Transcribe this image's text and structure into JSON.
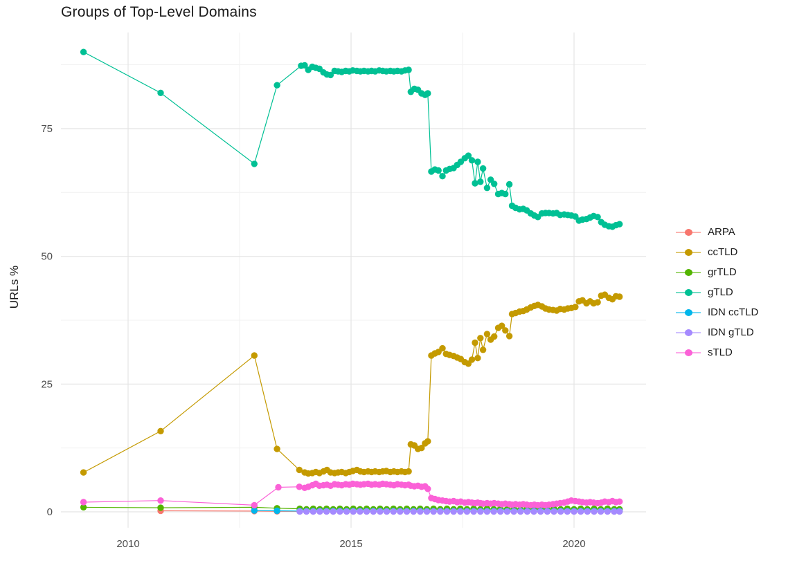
{
  "title": "Groups of Top-Level Domains",
  "y_axis": {
    "label": "URLs %",
    "ticks": [
      "0",
      "25",
      "50",
      "75"
    ]
  },
  "x_axis": {
    "ticks": [
      "2010",
      "2015",
      "2020"
    ]
  },
  "legend": {
    "position": "right",
    "items": [
      {
        "label": "ARPA",
        "color": "#F8766D"
      },
      {
        "label": "ccTLD",
        "color": "#C49A00"
      },
      {
        "label": "grTLD",
        "color": "#53B400"
      },
      {
        "label": "gTLD",
        "color": "#00C094"
      },
      {
        "label": "IDN ccTLD",
        "color": "#00B6EB"
      },
      {
        "label": "IDN gTLD",
        "color": "#A58AFF"
      },
      {
        "label": "sTLD",
        "color": "#FB61D7"
      }
    ]
  },
  "chart_data": {
    "type": "line",
    "title": "Groups of Top-Level Domains",
    "xlabel": "",
    "ylabel": "URLs %",
    "x_range": [
      2008.5,
      2021.6
    ],
    "y_range": [
      -3,
      94
    ],
    "x_major_ticks": [
      2010,
      2015,
      2020
    ],
    "x_minor_gridlines": [
      2012.5,
      2017.5
    ],
    "y_major_ticks": [
      0,
      25,
      50,
      75
    ],
    "y_minor_gridlines": [
      12.5,
      37.5,
      62.5,
      87.5
    ],
    "grid": true,
    "legend_position": "right",
    "series": [
      {
        "name": "ARPA",
        "color": "#F8766D",
        "x": [
          2010.73,
          2012.83,
          2013.34,
          2013.85,
          2014.0,
          2014.15,
          2014.3,
          2014.45,
          2014.6,
          2014.75,
          2014.9,
          2015.05,
          2015.2,
          2015.35,
          2015.5,
          2015.65,
          2015.8,
          2015.95,
          2016.1,
          2016.25,
          2016.4,
          2016.55,
          2016.7,
          2016.85,
          2017.0,
          2017.15,
          2017.3,
          2017.45,
          2017.6,
          2017.75,
          2017.9,
          2018.05,
          2018.2,
          2018.35,
          2018.5,
          2018.65,
          2018.8,
          2018.95,
          2019.1,
          2019.25,
          2019.4,
          2019.55,
          2019.7,
          2019.85,
          2020.0,
          2020.15,
          2020.3,
          2020.45,
          2020.6,
          2020.75,
          2020.9,
          2021.02
        ],
        "y": [
          0.2,
          0.15,
          0.1,
          0.1,
          0.1,
          0.1,
          0.1,
          0.1,
          0.1,
          0.1,
          0.1,
          0.1,
          0.1,
          0.1,
          0.1,
          0.1,
          0.1,
          0.1,
          0.1,
          0.1,
          0.1,
          0.1,
          0.1,
          0.1,
          0.1,
          0.1,
          0.1,
          0.1,
          0.1,
          0.1,
          0.1,
          0.1,
          0.1,
          0.1,
          0.1,
          0.1,
          0.1,
          0.1,
          0.1,
          0.1,
          0.1,
          0.1,
          0.1,
          0.1,
          0.1,
          0.1,
          0.1,
          0.1,
          0.1,
          0.1,
          0.1,
          0.1
        ]
      },
      {
        "name": "ccTLD",
        "color": "#C49A00",
        "x": [
          2009.0,
          2010.73,
          2012.83,
          2013.34,
          2013.84,
          2013.96,
          2014.04,
          2014.13,
          2014.21,
          2014.29,
          2014.38,
          2014.46,
          2014.54,
          2014.63,
          2014.71,
          2014.79,
          2014.88,
          2014.96,
          2015.04,
          2015.13,
          2015.21,
          2015.29,
          2015.38,
          2015.46,
          2015.54,
          2015.63,
          2015.71,
          2015.79,
          2015.88,
          2015.96,
          2016.04,
          2016.13,
          2016.21,
          2016.29,
          2016.34,
          2016.42,
          2016.5,
          2016.58,
          2016.66,
          2016.72,
          2016.8,
          2016.88,
          2016.96,
          2017.05,
          2017.13,
          2017.21,
          2017.3,
          2017.38,
          2017.46,
          2017.55,
          2017.63,
          2017.71,
          2017.78,
          2017.84,
          2017.9,
          2017.96,
          2018.05,
          2018.13,
          2018.21,
          2018.3,
          2018.38,
          2018.46,
          2018.55,
          2018.61,
          2018.69,
          2018.78,
          2018.86,
          2018.94,
          2019.03,
          2019.11,
          2019.19,
          2019.28,
          2019.36,
          2019.44,
          2019.53,
          2019.61,
          2019.69,
          2019.78,
          2019.86,
          2019.94,
          2020.03,
          2020.11,
          2020.19,
          2020.28,
          2020.36,
          2020.44,
          2020.53,
          2020.61,
          2020.69,
          2020.78,
          2020.86,
          2020.94,
          2021.02
        ],
        "y": [
          7.7,
          15.8,
          30.6,
          12.3,
          8.2,
          7.7,
          7.5,
          7.6,
          7.8,
          7.6,
          7.9,
          8.2,
          7.7,
          7.6,
          7.7,
          7.8,
          7.6,
          7.8,
          8.0,
          8.2,
          7.9,
          7.8,
          7.9,
          7.8,
          7.9,
          7.8,
          7.9,
          8.0,
          7.8,
          7.9,
          7.8,
          7.9,
          7.8,
          7.9,
          13.2,
          13.0,
          12.3,
          12.5,
          13.4,
          13.8,
          30.6,
          31.0,
          31.3,
          32.0,
          30.9,
          30.7,
          30.5,
          30.2,
          29.9,
          29.3,
          29.0,
          29.8,
          33.1,
          30.1,
          34.0,
          31.7,
          34.8,
          33.7,
          34.3,
          36.0,
          36.4,
          35.5,
          34.4,
          38.7,
          38.9,
          39.2,
          39.3,
          39.6,
          40.0,
          40.3,
          40.5,
          40.2,
          39.8,
          39.6,
          39.5,
          39.4,
          39.7,
          39.6,
          39.8,
          39.9,
          40.1,
          41.2,
          41.4,
          40.8,
          41.2,
          40.8,
          41.0,
          42.3,
          42.5,
          41.9,
          41.6,
          42.2,
          42.1
        ]
      },
      {
        "name": "grTLD",
        "color": "#53B400",
        "x": [
          2009.0,
          2010.73,
          2012.83,
          2013.34,
          2013.85,
          2014.0,
          2014.15,
          2014.3,
          2014.45,
          2014.6,
          2014.75,
          2014.9,
          2015.05,
          2015.2,
          2015.35,
          2015.5,
          2015.65,
          2015.8,
          2015.95,
          2016.1,
          2016.25,
          2016.4,
          2016.55,
          2016.7,
          2016.85,
          2017.0,
          2017.15,
          2017.3,
          2017.45,
          2017.6,
          2017.75,
          2017.9,
          2018.05,
          2018.2,
          2018.35,
          2018.5,
          2018.65,
          2018.8,
          2018.95,
          2019.1,
          2019.25,
          2019.4,
          2019.55,
          2019.7,
          2019.85,
          2020.0,
          2020.15,
          2020.3,
          2020.45,
          2020.6,
          2020.75,
          2020.9,
          2021.02
        ],
        "y": [
          0.9,
          0.8,
          0.9,
          0.7,
          0.6,
          0.5,
          0.6,
          0.5,
          0.6,
          0.5,
          0.6,
          0.5,
          0.6,
          0.5,
          0.6,
          0.5,
          0.6,
          0.5,
          0.6,
          0.5,
          0.6,
          0.5,
          0.6,
          0.5,
          0.6,
          0.5,
          0.6,
          0.5,
          0.6,
          0.5,
          0.6,
          0.5,
          0.6,
          0.5,
          0.6,
          0.5,
          0.6,
          0.5,
          0.6,
          0.5,
          0.6,
          0.5,
          0.6,
          0.5,
          0.6,
          0.5,
          0.6,
          0.5,
          0.6,
          0.5,
          0.6,
          0.5,
          0.5
        ]
      },
      {
        "name": "gTLD",
        "color": "#00C094",
        "x": [
          2009.0,
          2010.73,
          2012.83,
          2013.34,
          2013.88,
          2013.96,
          2014.04,
          2014.13,
          2014.21,
          2014.29,
          2014.38,
          2014.46,
          2014.54,
          2014.63,
          2014.71,
          2014.79,
          2014.88,
          2014.96,
          2015.04,
          2015.13,
          2015.21,
          2015.29,
          2015.38,
          2015.46,
          2015.54,
          2015.63,
          2015.71,
          2015.79,
          2015.88,
          2015.96,
          2016.04,
          2016.13,
          2016.21,
          2016.29,
          2016.34,
          2016.42,
          2016.5,
          2016.58,
          2016.66,
          2016.72,
          2016.8,
          2016.88,
          2016.96,
          2017.05,
          2017.13,
          2017.21,
          2017.3,
          2017.38,
          2017.46,
          2017.55,
          2017.63,
          2017.71,
          2017.78,
          2017.84,
          2017.9,
          2017.96,
          2018.05,
          2018.13,
          2018.21,
          2018.3,
          2018.38,
          2018.46,
          2018.55,
          2018.61,
          2018.69,
          2018.78,
          2018.86,
          2018.94,
          2019.03,
          2019.11,
          2019.19,
          2019.28,
          2019.36,
          2019.44,
          2019.53,
          2019.61,
          2019.69,
          2019.78,
          2019.86,
          2019.94,
          2020.03,
          2020.11,
          2020.19,
          2020.28,
          2020.36,
          2020.44,
          2020.53,
          2020.61,
          2020.69,
          2020.78,
          2020.86,
          2020.94,
          2021.02
        ],
        "y": [
          90.0,
          82.0,
          68.1,
          83.5,
          87.3,
          87.4,
          86.5,
          87.1,
          86.9,
          86.7,
          86.0,
          85.6,
          85.5,
          86.3,
          86.2,
          86.1,
          86.3,
          86.2,
          86.4,
          86.3,
          86.2,
          86.3,
          86.2,
          86.3,
          86.2,
          86.4,
          86.3,
          86.2,
          86.3,
          86.2,
          86.3,
          86.2,
          86.4,
          86.5,
          82.2,
          82.8,
          82.6,
          81.9,
          81.6,
          81.9,
          66.6,
          67.0,
          66.8,
          65.7,
          66.8,
          67.1,
          67.3,
          67.9,
          68.5,
          69.2,
          69.7,
          68.8,
          64.3,
          68.5,
          64.6,
          67.2,
          63.4,
          65.0,
          64.2,
          62.2,
          62.4,
          62.2,
          64.1,
          59.9,
          59.5,
          59.2,
          59.3,
          59.0,
          58.4,
          58.0,
          57.7,
          58.4,
          58.5,
          58.5,
          58.4,
          58.5,
          58.1,
          58.2,
          58.1,
          58.0,
          57.8,
          57.0,
          57.2,
          57.3,
          57.6,
          57.9,
          57.7,
          56.7,
          56.2,
          55.9,
          55.8,
          56.1,
          56.3
        ]
      },
      {
        "name": "IDN ccTLD",
        "color": "#00B6EB",
        "x": [
          2012.83,
          2013.34,
          2013.85,
          2014.0,
          2014.15,
          2014.3,
          2014.45,
          2014.6,
          2014.75,
          2014.9,
          2015.05,
          2015.2,
          2015.35,
          2015.5,
          2015.65,
          2015.8,
          2015.95,
          2016.1,
          2016.25,
          2016.4,
          2016.55,
          2016.7,
          2016.85,
          2017.0,
          2017.15,
          2017.3,
          2017.45,
          2017.6,
          2017.75,
          2017.9,
          2018.05,
          2018.2,
          2018.35,
          2018.5,
          2018.65,
          2018.8,
          2018.95,
          2019.1,
          2019.25,
          2019.4,
          2019.55,
          2019.7,
          2019.85,
          2020.0,
          2020.15,
          2020.3,
          2020.45,
          2020.6,
          2020.75,
          2020.9,
          2021.02
        ],
        "y": [
          0.25,
          0.2,
          0.15,
          0.15,
          0.15,
          0.15,
          0.15,
          0.15,
          0.15,
          0.15,
          0.15,
          0.15,
          0.15,
          0.15,
          0.15,
          0.15,
          0.15,
          0.15,
          0.15,
          0.15,
          0.15,
          0.15,
          0.15,
          0.15,
          0.15,
          0.15,
          0.15,
          0.15,
          0.15,
          0.15,
          0.15,
          0.15,
          0.15,
          0.15,
          0.15,
          0.15,
          0.15,
          0.15,
          0.15,
          0.15,
          0.15,
          0.15,
          0.15,
          0.15,
          0.15,
          0.15,
          0.15,
          0.15,
          0.15,
          0.15,
          0.15
        ]
      },
      {
        "name": "IDN gTLD",
        "color": "#A58AFF",
        "x": [
          2013.85,
          2014.0,
          2014.15,
          2014.3,
          2014.45,
          2014.6,
          2014.75,
          2014.9,
          2015.05,
          2015.2,
          2015.35,
          2015.5,
          2015.65,
          2015.8,
          2015.95,
          2016.1,
          2016.25,
          2016.4,
          2016.55,
          2016.7,
          2016.85,
          2017.0,
          2017.15,
          2017.3,
          2017.45,
          2017.6,
          2017.75,
          2017.9,
          2018.05,
          2018.2,
          2018.35,
          2018.5,
          2018.65,
          2018.8,
          2018.95,
          2019.1,
          2019.25,
          2019.4,
          2019.55,
          2019.7,
          2019.85,
          2020.0,
          2020.15,
          2020.3,
          2020.45,
          2020.6,
          2020.75,
          2020.9,
          2021.02
        ],
        "y": [
          0.05,
          0.05,
          0.05,
          0.05,
          0.05,
          0.05,
          0.05,
          0.05,
          0.05,
          0.05,
          0.05,
          0.05,
          0.05,
          0.05,
          0.05,
          0.05,
          0.05,
          0.05,
          0.05,
          0.05,
          0.05,
          0.05,
          0.05,
          0.05,
          0.05,
          0.05,
          0.05,
          0.05,
          0.05,
          0.05,
          0.05,
          0.05,
          0.05,
          0.05,
          0.05,
          0.05,
          0.05,
          0.05,
          0.05,
          0.05,
          0.05,
          0.05,
          0.05,
          0.05,
          0.05,
          0.05,
          0.05,
          0.05,
          0.05
        ]
      },
      {
        "name": "sTLD",
        "color": "#FB61D7",
        "x": [
          2009.0,
          2010.73,
          2012.83,
          2013.37,
          2013.84,
          2013.96,
          2014.04,
          2014.13,
          2014.21,
          2014.29,
          2014.38,
          2014.46,
          2014.54,
          2014.63,
          2014.71,
          2014.79,
          2014.88,
          2014.96,
          2015.04,
          2015.13,
          2015.21,
          2015.29,
          2015.38,
          2015.46,
          2015.54,
          2015.63,
          2015.71,
          2015.79,
          2015.88,
          2015.96,
          2016.04,
          2016.13,
          2016.21,
          2016.29,
          2016.34,
          2016.42,
          2016.5,
          2016.58,
          2016.66,
          2016.72,
          2016.8,
          2016.88,
          2016.96,
          2017.05,
          2017.13,
          2017.21,
          2017.3,
          2017.38,
          2017.46,
          2017.55,
          2017.63,
          2017.71,
          2017.78,
          2017.84,
          2017.9,
          2017.96,
          2018.05,
          2018.13,
          2018.21,
          2018.3,
          2018.38,
          2018.46,
          2018.55,
          2018.61,
          2018.69,
          2018.78,
          2018.86,
          2018.94,
          2019.03,
          2019.11,
          2019.19,
          2019.28,
          2019.36,
          2019.44,
          2019.53,
          2019.61,
          2019.69,
          2019.78,
          2019.86,
          2019.94,
          2020.03,
          2020.11,
          2020.19,
          2020.28,
          2020.36,
          2020.44,
          2020.53,
          2020.61,
          2020.69,
          2020.78,
          2020.86,
          2020.94,
          2021.02
        ],
        "y": [
          1.9,
          2.2,
          1.3,
          4.8,
          4.9,
          4.7,
          4.9,
          5.2,
          5.5,
          5.1,
          5.2,
          5.3,
          5.1,
          5.4,
          5.3,
          5.2,
          5.4,
          5.3,
          5.5,
          5.4,
          5.3,
          5.4,
          5.5,
          5.3,
          5.4,
          5.3,
          5.5,
          5.4,
          5.3,
          5.2,
          5.4,
          5.3,
          5.2,
          5.3,
          5.1,
          5.0,
          5.1,
          4.9,
          5.0,
          4.5,
          2.7,
          2.5,
          2.3,
          2.2,
          2.1,
          2.0,
          2.1,
          1.9,
          2.0,
          1.8,
          1.9,
          1.8,
          1.7,
          1.8,
          1.7,
          1.6,
          1.7,
          1.6,
          1.7,
          1.6,
          1.5,
          1.6,
          1.5,
          1.4,
          1.5,
          1.4,
          1.5,
          1.4,
          1.3,
          1.4,
          1.3,
          1.4,
          1.3,
          1.4,
          1.5,
          1.6,
          1.7,
          1.8,
          2.0,
          2.2,
          2.1,
          2.0,
          1.9,
          1.8,
          1.9,
          1.8,
          1.7,
          1.8,
          2.0,
          1.9,
          2.1,
          1.9,
          2.0
        ]
      }
    ]
  }
}
